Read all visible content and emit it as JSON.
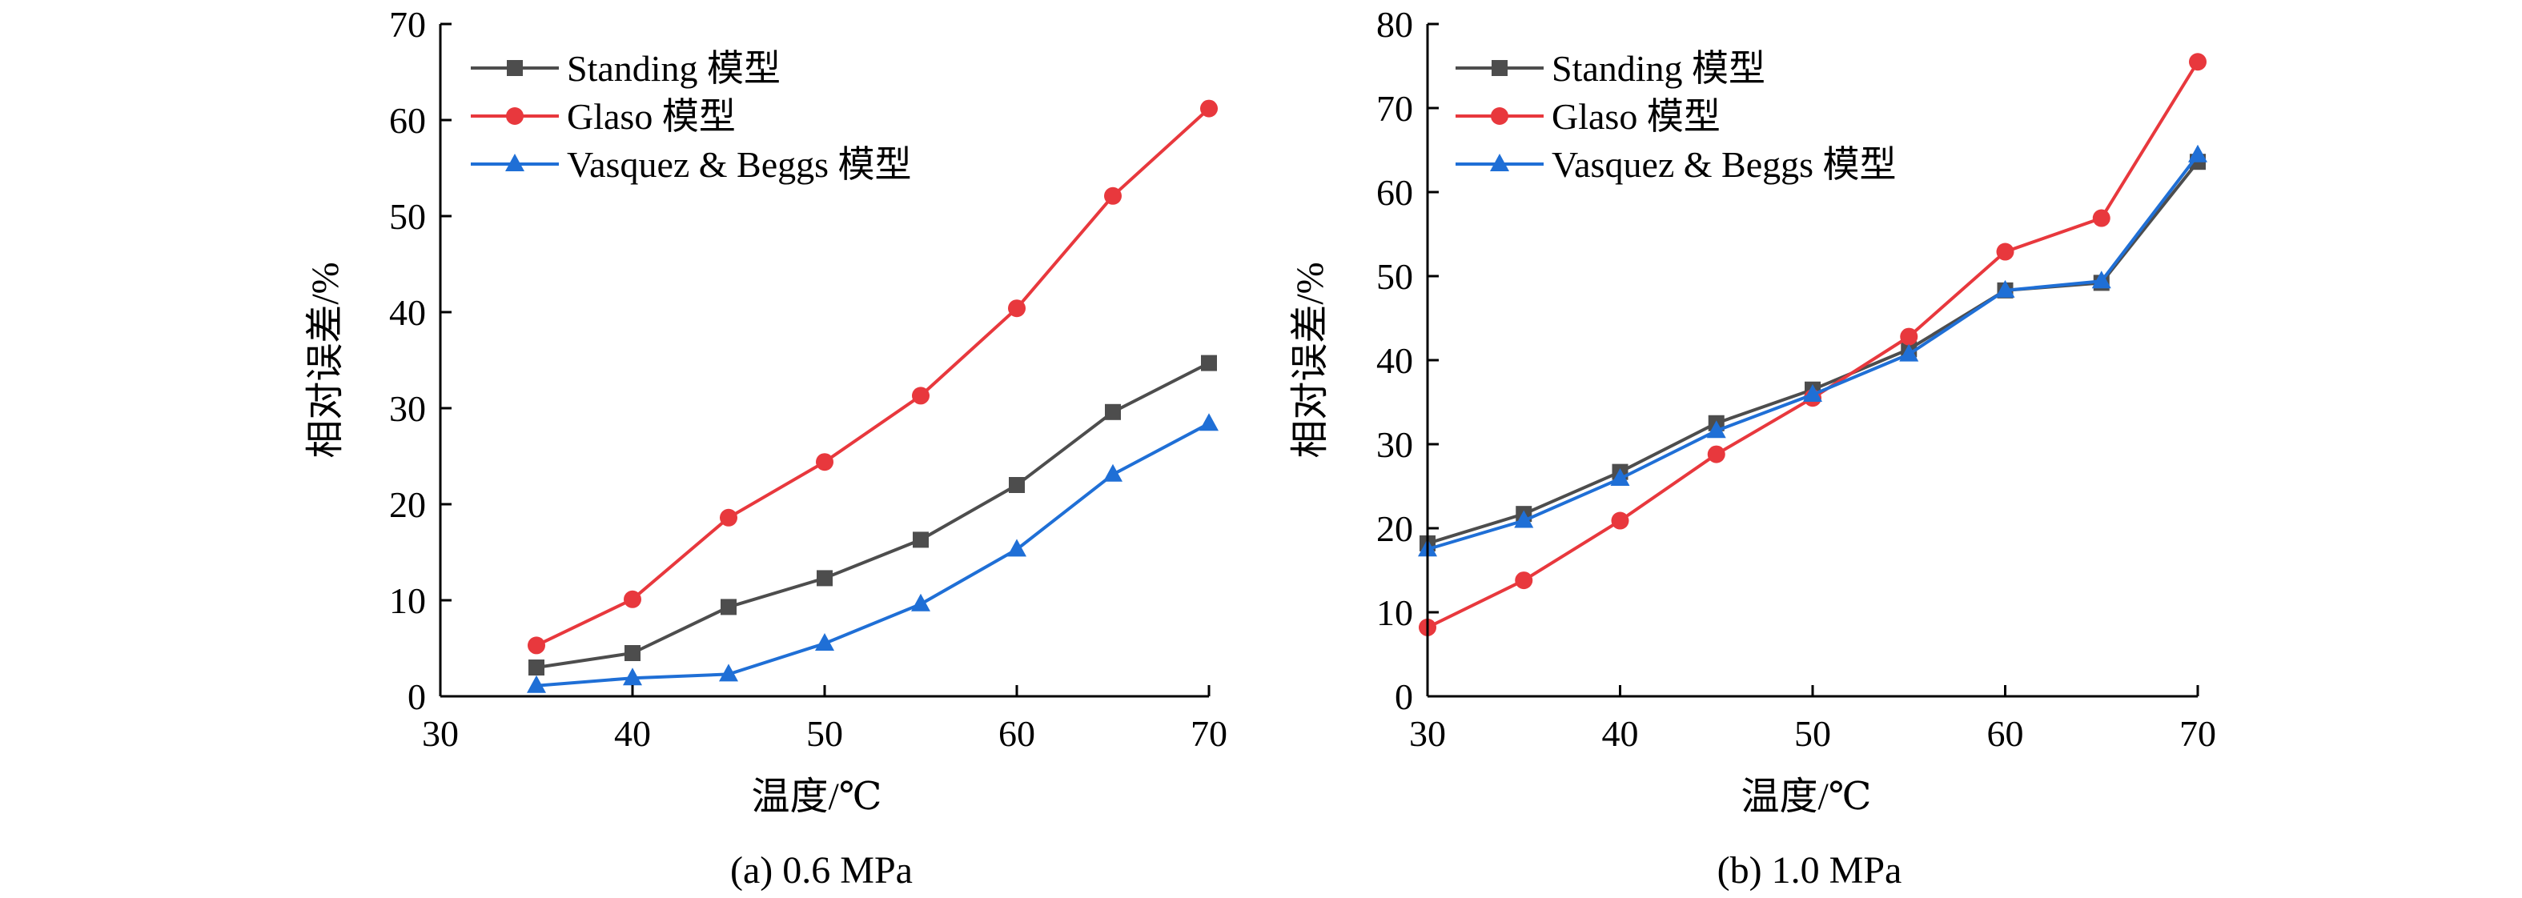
{
  "chart_data": [
    {
      "type": "line",
      "caption": "(a) 0.6 MPa",
      "xlabel": "温度/℃",
      "ylabel": "相对误差/%",
      "xlim": [
        30,
        70
      ],
      "ylim": [
        0,
        70
      ],
      "xticks": [
        30,
        40,
        50,
        60,
        70
      ],
      "yticks": [
        0,
        10,
        20,
        30,
        40,
        50,
        60,
        70
      ],
      "x": [
        35,
        40,
        45,
        50,
        55,
        60,
        65,
        70
      ],
      "legend_position": "top-left",
      "series": [
        {
          "name": "Standing 模型",
          "color": "#4d4d4d",
          "marker": "square",
          "values": [
            3.0,
            4.5,
            9.3,
            12.3,
            16.3,
            22.0,
            29.6,
            34.7
          ]
        },
        {
          "name": "Glaso 模型",
          "color": "#e8383d",
          "marker": "circle",
          "values": [
            5.3,
            10.1,
            18.6,
            24.4,
            31.3,
            40.4,
            52.1,
            61.2
          ]
        },
        {
          "name": "Vasquez & Beggs 模型",
          "color": "#1f6fd6",
          "marker": "triangle",
          "values": [
            1.1,
            1.9,
            2.3,
            5.5,
            9.6,
            15.3,
            23.1,
            28.4
          ]
        }
      ]
    },
    {
      "type": "line",
      "caption": "(b) 1.0 MPa",
      "xlabel": "温度/℃",
      "ylabel": "相对误差/%",
      "xlim": [
        30,
        70
      ],
      "ylim": [
        0,
        80
      ],
      "xticks": [
        30,
        40,
        50,
        60,
        70
      ],
      "yticks": [
        0,
        10,
        20,
        30,
        40,
        50,
        60,
        70,
        80
      ],
      "x": [
        30,
        35,
        40,
        45,
        50,
        55,
        60,
        65,
        70
      ],
      "legend_position": "top-left",
      "series": [
        {
          "name": "Standing 模型",
          "color": "#4d4d4d",
          "marker": "square",
          "values": [
            18.2,
            21.7,
            26.7,
            32.5,
            36.5,
            41.3,
            48.3,
            49.2,
            63.6
          ]
        },
        {
          "name": "Glaso 模型",
          "color": "#e8383d",
          "marker": "circle",
          "values": [
            8.2,
            13.8,
            20.9,
            28.8,
            35.5,
            42.8,
            52.9,
            56.9,
            75.5
          ]
        },
        {
          "name": "Vasquez & Beggs 模型",
          "color": "#1f6fd6",
          "marker": "triangle",
          "values": [
            17.5,
            20.9,
            25.9,
            31.6,
            35.9,
            40.7,
            48.3,
            49.4,
            64.4
          ]
        }
      ]
    }
  ]
}
